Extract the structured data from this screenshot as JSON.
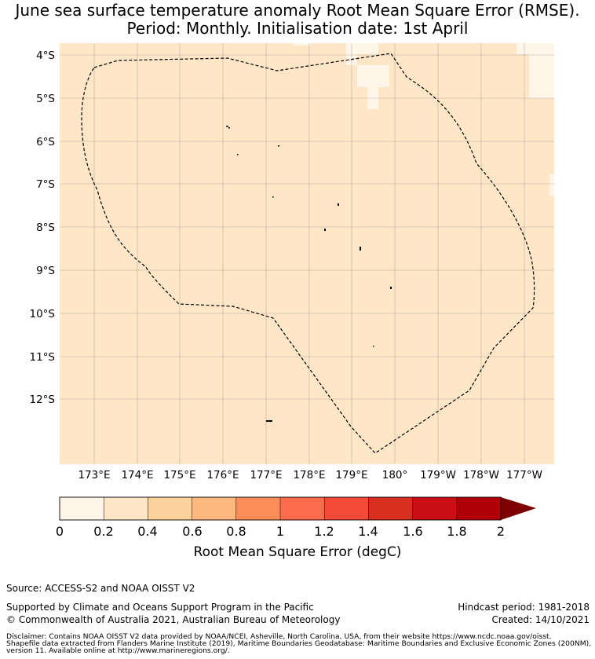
{
  "title_line1": "June sea surface temperature anomaly Root Mean Square Error (RMSE).",
  "title_line2": "Period: Monthly. Initialisation date: 1st April",
  "map": {
    "lat_labels": [
      "4°S",
      "5°S",
      "6°S",
      "7°S",
      "8°S",
      "9°S",
      "10°S",
      "11°S",
      "12°S"
    ],
    "lon_labels": [
      "173°E",
      "174°E",
      "175°E",
      "176°E",
      "177°E",
      "178°E",
      "179°E",
      "180°",
      "179°W",
      "178°W",
      "177°W"
    ],
    "field_color": "#fee6c7",
    "low_color": "#fff5e8",
    "boundary_style": "dashed"
  },
  "colorbar": {
    "label": "Root Mean Square Error (degC)",
    "tick_labels": [
      "0",
      "0.2",
      "0.4",
      "0.6",
      "0.8",
      "1",
      "1.2",
      "1.4",
      "1.6",
      "1.8",
      "2"
    ],
    "colors": [
      "#fff5e8",
      "#fee6c7",
      "#fdd19c",
      "#fdb87e",
      "#fc8d59",
      "#fc6b4a",
      "#f44b37",
      "#d7301f",
      "#c90e15",
      "#b00008",
      "#7f0000"
    ],
    "extend": "max"
  },
  "footer": {
    "source": "Source: ACCESS-S2 and NOAA OISST V2",
    "supported": "Supported by Climate and Oceans Support Program in the Pacific",
    "copyright": "© Commonwealth of Australia 2021, Australian Bureau of Meteorology",
    "hindcast": "Hindcast period: 1981-2018",
    "created": "Created: 14/10/2021",
    "disclaimer_1": "Disclaimer: Contains NOAA OISST V2 data provided by NOAA/NCEI, Asheville, North Carolina, USA, from their website https://www.ncdc.noaa.gov/oisst.",
    "disclaimer_2": "Shapefile data extracted from Flanders Marine Institute (2019), Maritime Boundaries Geodatabase: Maritime Boundaries and Exclusive Economic Zones (200NM),",
    "disclaimer_3": "version 11. Available online at http://www.marineregions.org/."
  }
}
